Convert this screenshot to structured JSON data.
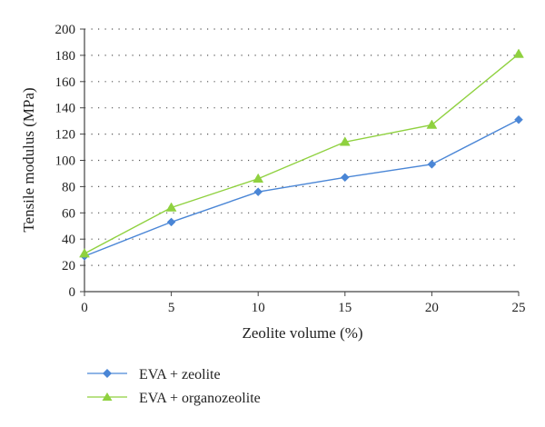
{
  "chart_data": {
    "type": "line",
    "title": "",
    "xlabel": "Zeolite volume (%)",
    "ylabel": "Tensile modulus (MPa)",
    "x": [
      0,
      5,
      10,
      15,
      20,
      25
    ],
    "x_tick_labels": [
      "0",
      "5",
      "10",
      "15",
      "20",
      "25"
    ],
    "xlim": [
      0,
      25
    ],
    "ylim": [
      0,
      200
    ],
    "y_tick_labels": [
      "0",
      "20",
      "40",
      "60",
      "80",
      "100",
      "120",
      "140",
      "160",
      "180",
      "200"
    ],
    "grid": "horizontal dotted",
    "legend_position": "bottom",
    "series": [
      {
        "name": "EVA + zeolite",
        "values": [
          27,
          53,
          76,
          87,
          97,
          131
        ],
        "color": "#4a86d6",
        "marker": "diamond"
      },
      {
        "name": "EVA + organozeolite",
        "values": [
          29,
          64,
          86,
          114,
          127,
          181
        ],
        "color": "#8fd13f",
        "marker": "triangle"
      }
    ]
  }
}
